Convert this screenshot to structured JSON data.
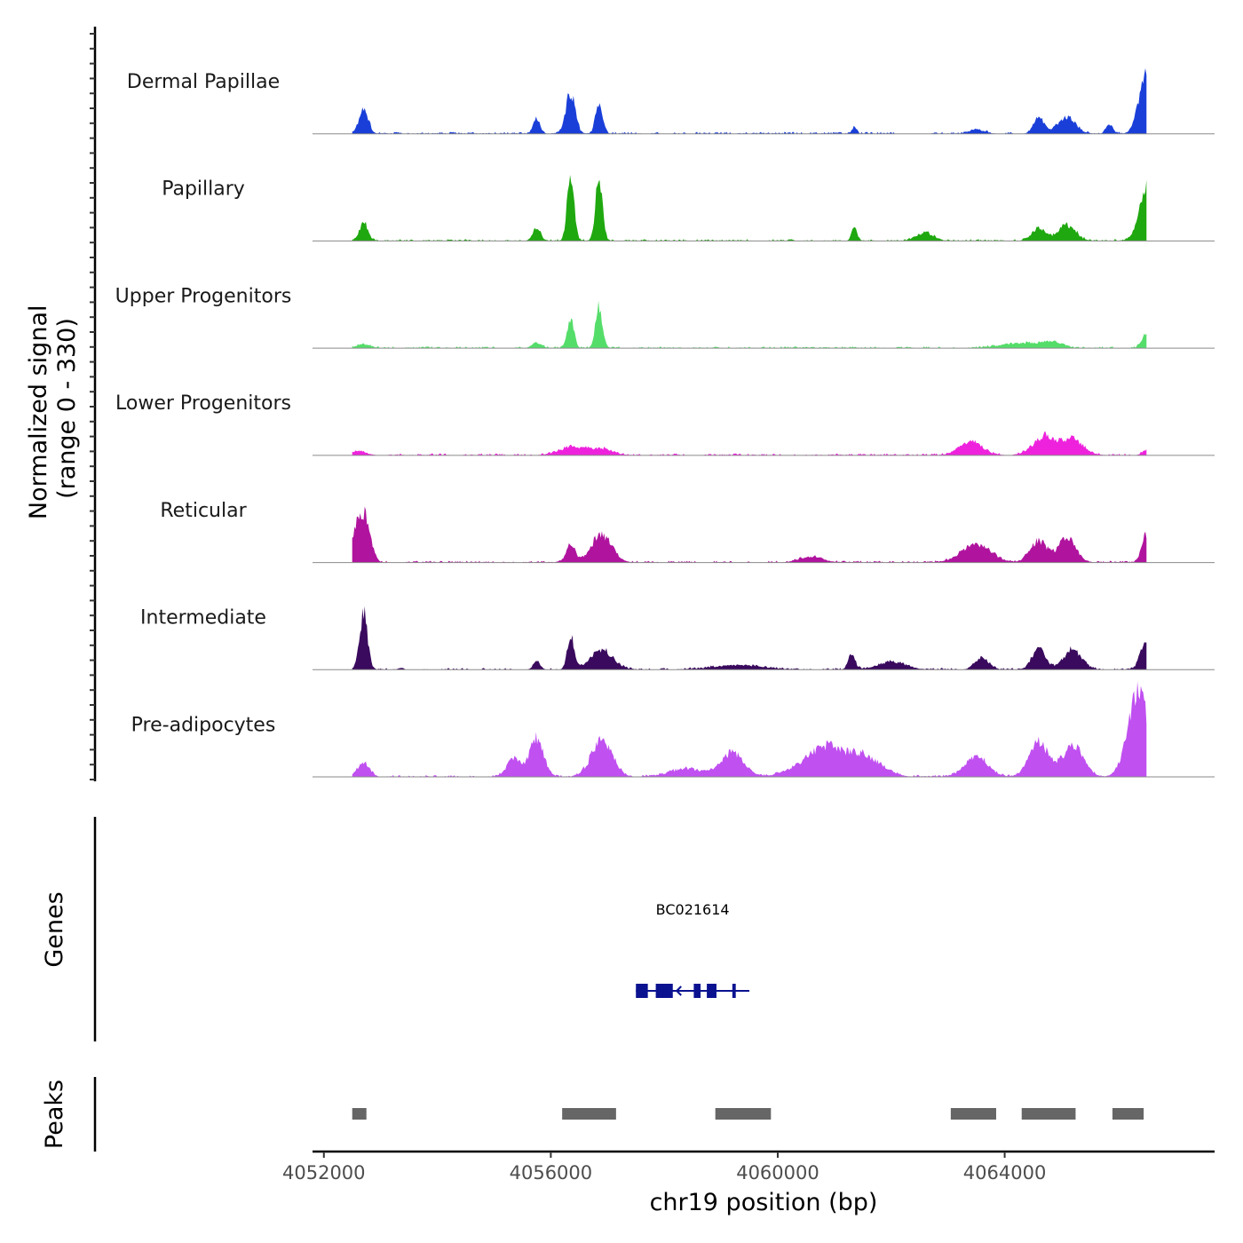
{
  "chart_data": {
    "type": "area",
    "chromosome": "chr19",
    "xlabel": "chr19 position (bp)",
    "xlim": [
      4051800,
      4067700
    ],
    "x_ticks": [
      4052000,
      4056000,
      4060000,
      4064000
    ],
    "x_tick_labels": [
      "4052000",
      "4056000",
      "4060000",
      "4064000"
    ],
    "coverage": {
      "ylabel_line1": "Normalized signal",
      "ylabel_line2": "(range 0 - 330)",
      "ylim": [
        0,
        330
      ],
      "signal_start": 4052500,
      "signal_end": 4066500,
      "tracks": [
        {
          "name": "Dermal Papillae",
          "color": "#1a3fd9",
          "peaks": [
            [
              4052700,
              80,
              80
            ],
            [
              4055750,
              45,
              60
            ],
            [
              4056350,
              130,
              80
            ],
            [
              4056850,
              95,
              60
            ],
            [
              4061350,
              20,
              40
            ],
            [
              4063500,
              15,
              120
            ],
            [
              4064600,
              55,
              90
            ],
            [
              4065100,
              55,
              150
            ],
            [
              4065850,
              30,
              60
            ],
            [
              4066500,
              190,
              130
            ]
          ]
        },
        {
          "name": "Papillary",
          "color": "#1fa80f",
          "peaks": [
            [
              4052700,
              60,
              70
            ],
            [
              4055750,
              40,
              70
            ],
            [
              4056350,
              210,
              60
            ],
            [
              4056850,
              205,
              60
            ],
            [
              4061350,
              40,
              50
            ],
            [
              4062600,
              25,
              150
            ],
            [
              4064600,
              40,
              120
            ],
            [
              4065100,
              50,
              150
            ],
            [
              4066500,
              165,
              130
            ]
          ]
        },
        {
          "name": "Upper Progenitors",
          "color": "#55dd6a",
          "peaks": [
            [
              4052700,
              12,
              120
            ],
            [
              4055750,
              18,
              80
            ],
            [
              4056350,
              85,
              60
            ],
            [
              4056850,
              135,
              60
            ],
            [
              4064200,
              15,
              300
            ],
            [
              4064800,
              18,
              200
            ],
            [
              4066500,
              45,
              80
            ]
          ]
        },
        {
          "name": "Lower Progenitors",
          "color": "#ee22dd",
          "peaks": [
            [
              4052600,
              12,
              150
            ],
            [
              4056400,
              25,
              250
            ],
            [
              4056900,
              18,
              200
            ],
            [
              4063400,
              45,
              200
            ],
            [
              4064700,
              60,
              200
            ],
            [
              4065200,
              50,
              180
            ],
            [
              4066500,
              15,
              80
            ]
          ]
        },
        {
          "name": "Reticular",
          "color": "#b0149e",
          "peaks": [
            [
              4052600,
              110,
              100
            ],
            [
              4052750,
              110,
              90
            ],
            [
              4056350,
              55,
              80
            ],
            [
              4056900,
              85,
              180
            ],
            [
              4060600,
              18,
              200
            ],
            [
              4063500,
              60,
              250
            ],
            [
              4064600,
              70,
              150
            ],
            [
              4065100,
              80,
              150
            ],
            [
              4066500,
              90,
              80
            ]
          ]
        },
        {
          "name": "Intermediate",
          "color": "#3a0a5e",
          "peaks": [
            [
              4052700,
              180,
              70
            ],
            [
              4055750,
              30,
              60
            ],
            [
              4056350,
              105,
              60
            ],
            [
              4056900,
              60,
              200
            ],
            [
              4059300,
              15,
              400
            ],
            [
              4061300,
              50,
              60
            ],
            [
              4062000,
              25,
              250
            ],
            [
              4063600,
              40,
              120
            ],
            [
              4064600,
              65,
              120
            ],
            [
              4065200,
              65,
              160
            ],
            [
              4066500,
              90,
              100
            ]
          ]
        },
        {
          "name": "Pre-adipocytes",
          "color": "#c050f0",
          "peaks": [
            [
              4052700,
              45,
              100
            ],
            [
              4055350,
              60,
              120
            ],
            [
              4055750,
              125,
              120
            ],
            [
              4056900,
              120,
              180
            ],
            [
              4058400,
              25,
              300
            ],
            [
              4059200,
              75,
              200
            ],
            [
              4060500,
              40,
              300
            ],
            [
              4060900,
              75,
              250
            ],
            [
              4061500,
              70,
              300
            ],
            [
              4063500,
              65,
              200
            ],
            [
              4064600,
              110,
              170
            ],
            [
              4065200,
              100,
              180
            ],
            [
              4066350,
              270,
              180
            ]
          ]
        }
      ]
    },
    "genes": {
      "ylabel": "Genes",
      "items": [
        {
          "name": "BC021614",
          "start": 4057500,
          "end": 4059500,
          "strand": "-",
          "color": "#0a1290",
          "exons": [
            [
              4057500,
              4057710
            ],
            [
              4057850,
              4058150
            ],
            [
              4058520,
              4058640
            ],
            [
              4058750,
              4058920
            ],
            [
              4059200,
              4059260
            ]
          ]
        }
      ]
    },
    "peaks": {
      "ylabel": "Peaks",
      "color": "#666666",
      "regions": [
        [
          4052500,
          4052750
        ],
        [
          4056200,
          4057150
        ],
        [
          4058900,
          4059880
        ],
        [
          4063050,
          4063850
        ],
        [
          4064300,
          4065250
        ],
        [
          4065900,
          4066450
        ]
      ]
    }
  }
}
